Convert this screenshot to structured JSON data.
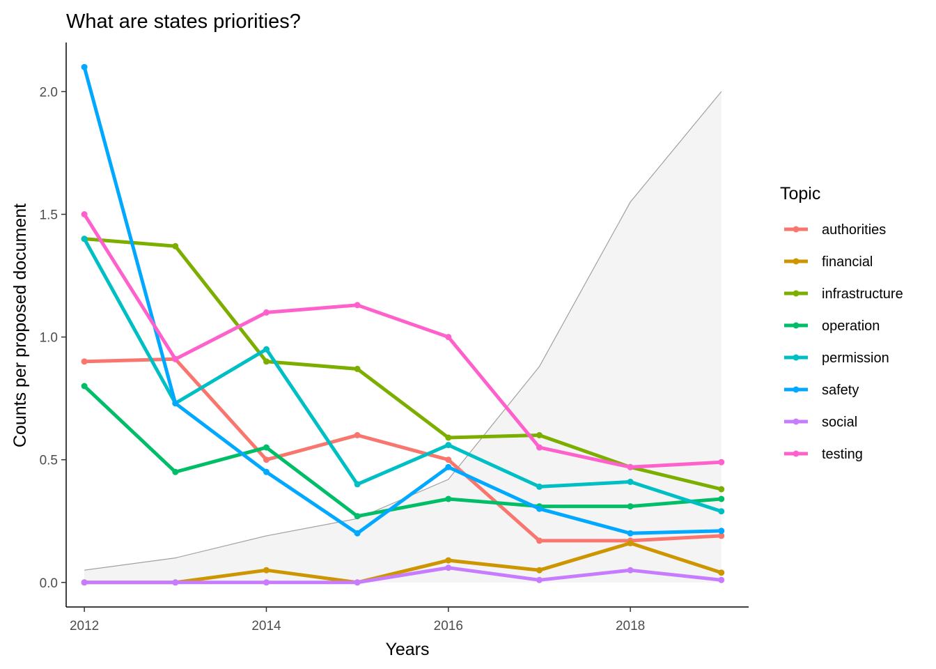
{
  "chart_data": {
    "type": "line",
    "title": "What are states priorities?",
    "xlabel": "Years",
    "ylabel": "Counts per proposed document",
    "xlim": [
      2011.8,
      2019.3
    ],
    "ylim": [
      -0.1,
      2.2
    ],
    "x_ticks": [
      2012,
      2014,
      2016,
      2018
    ],
    "y_ticks": [
      0.0,
      0.5,
      1.0,
      1.5,
      2.0
    ],
    "y_tick_labels": [
      "0.0",
      "0.5",
      "1.0",
      "1.5",
      "2.0"
    ],
    "grid": false,
    "legend": {
      "title": "Topic",
      "position": "right"
    },
    "x": [
      2012,
      2013,
      2014,
      2015,
      2016,
      2017,
      2018,
      2019
    ],
    "background_area": {
      "fill": "#f4f4f4",
      "stroke": "#a0a0a0",
      "values": [
        0.05,
        0.1,
        0.19,
        0.26,
        0.42,
        0.88,
        1.55,
        2.0
      ]
    },
    "series": [
      {
        "name": "authorities",
        "color": "#F8766D",
        "values": [
          0.9,
          0.91,
          0.5,
          0.6,
          0.5,
          0.17,
          0.17,
          0.19
        ]
      },
      {
        "name": "financial",
        "color": "#CD9600",
        "values": [
          0.0,
          0.0,
          0.05,
          0.0,
          0.09,
          0.05,
          0.16,
          0.04
        ]
      },
      {
        "name": "infrastructure",
        "color": "#7CAE00",
        "values": [
          1.4,
          1.37,
          0.9,
          0.87,
          0.59,
          0.6,
          0.47,
          0.38
        ]
      },
      {
        "name": "operation",
        "color": "#00BE67",
        "values": [
          0.8,
          0.45,
          0.55,
          0.27,
          0.34,
          0.31,
          0.31,
          0.34
        ]
      },
      {
        "name": "permission",
        "color": "#00BFC4",
        "values": [
          1.4,
          0.73,
          0.95,
          0.4,
          0.56,
          0.39,
          0.41,
          0.29
        ]
      },
      {
        "name": "safety",
        "color": "#00A9FF",
        "values": [
          2.1,
          0.73,
          0.45,
          0.2,
          0.47,
          0.3,
          0.2,
          0.21
        ]
      },
      {
        "name": "social",
        "color": "#C77CFF",
        "values": [
          0.0,
          0.0,
          0.0,
          0.0,
          0.06,
          0.01,
          0.05,
          0.01
        ]
      },
      {
        "name": "testing",
        "color": "#FF61CC",
        "values": [
          1.5,
          0.91,
          1.1,
          1.13,
          1.0,
          0.55,
          0.47,
          0.49
        ]
      }
    ]
  }
}
